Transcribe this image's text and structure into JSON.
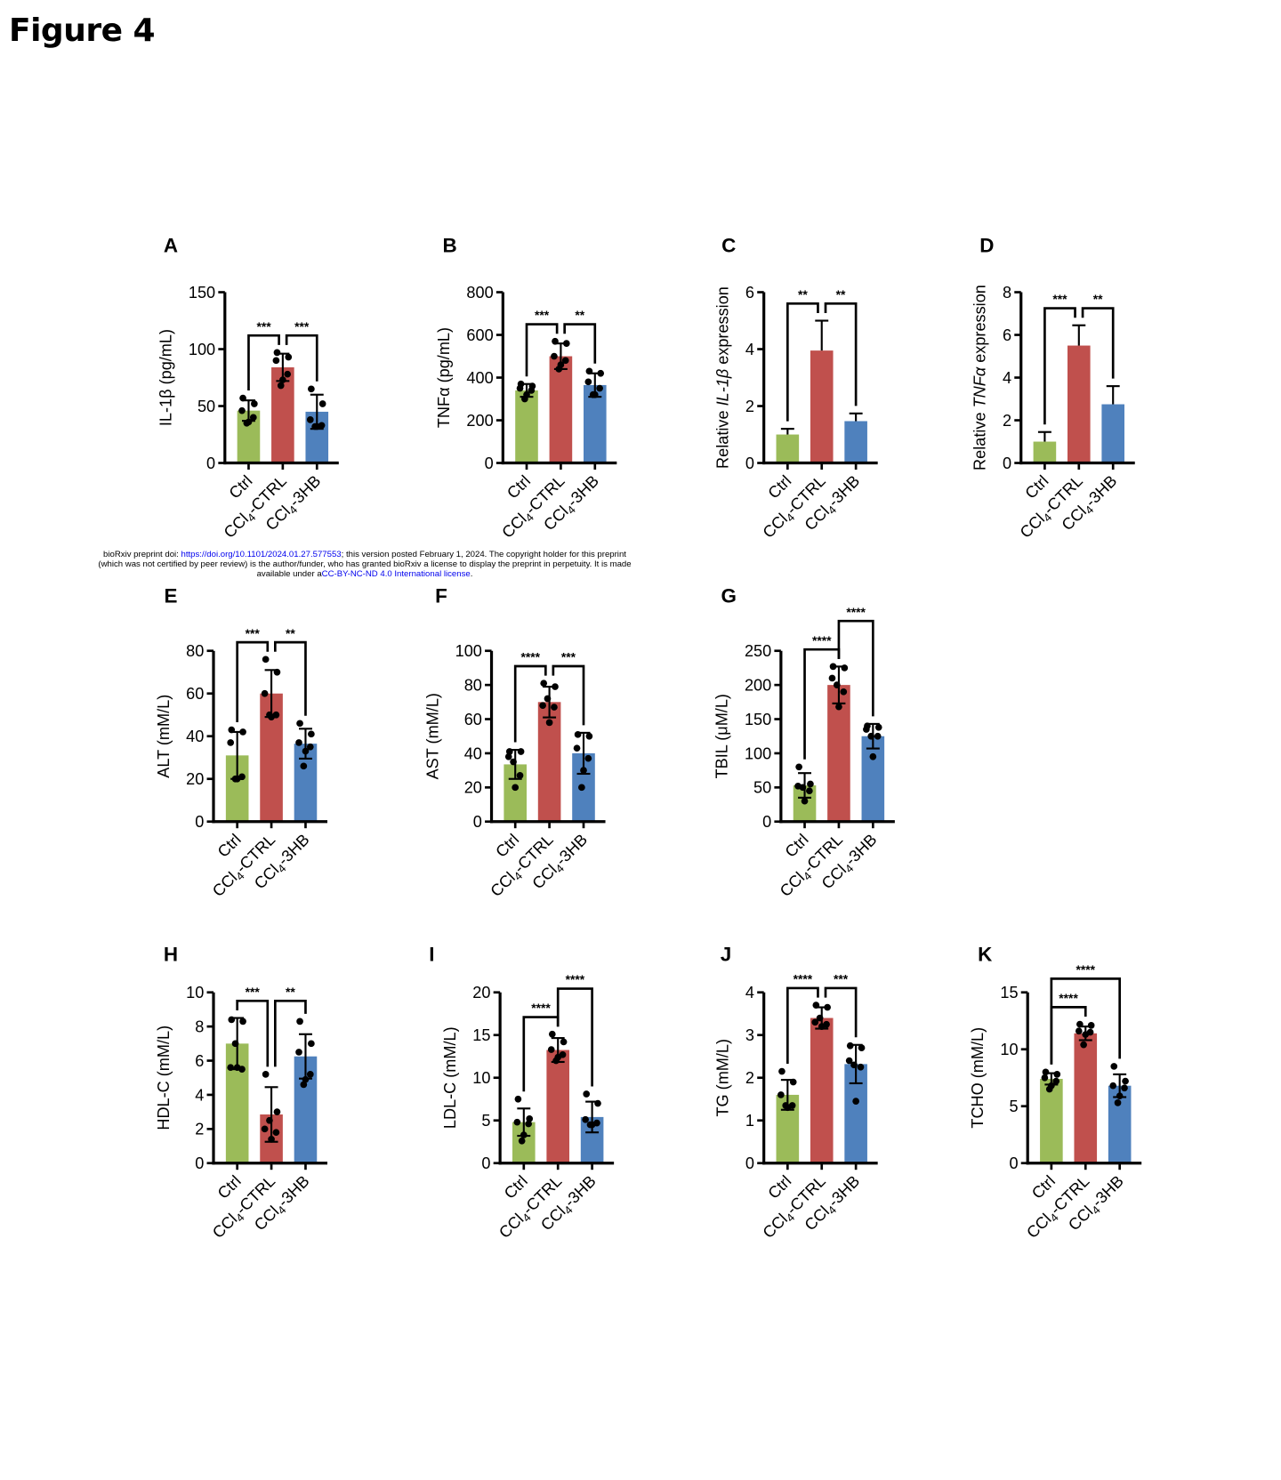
{
  "title": "Figure 4",
  "notice": {
    "line1_pre": "bioRxiv preprint doi: ",
    "doi_link": "https://doi.org/10.1101/2024.01.27.577553",
    "line1_post": "; this version posted February 1, 2024. The copyright holder for this preprint",
    "line2": "(which was not certified by peer review) is the author/funder, who has granted bioRxiv a license to display the preprint in perpetuity. It is made",
    "line3_pre": "available under a",
    "license_link": "CC-BY-NC-ND 4.0 International license",
    "line3_post": "."
  },
  "colors": {
    "Ctrl": "#9BBB59",
    "CCl4-CTRL": "#C0504D",
    "CCl4-3HB": "#4F81BD"
  },
  "chart_data": [
    {
      "panel": "A",
      "type": "bar",
      "ylabel": [
        {
          "t": "IL-1β (pg/mL)"
        }
      ],
      "ylim": [
        0,
        150
      ],
      "yticks": [
        "0",
        "50",
        "100",
        "150"
      ],
      "categories": [
        [
          {
            "t": "Ctrl"
          }
        ],
        [
          {
            "t": "CCl"
          },
          {
            "t": "4",
            "sub": true
          },
          {
            "t": "-CTRL"
          }
        ],
        [
          {
            "t": "CCl"
          },
          {
            "t": "4",
            "sub": true
          },
          {
            "t": "-3HB"
          }
        ]
      ],
      "error": "sd",
      "groups": [
        {
          "mean": 46,
          "sd": 9,
          "points": [
            57,
            52,
            46,
            40,
            36,
            35
          ]
        },
        {
          "mean": 84,
          "sd": 12,
          "points": [
            97,
            93,
            90,
            78,
            73,
            68
          ]
        },
        {
          "mean": 45,
          "sd": 15,
          "points": [
            65,
            52,
            38,
            33,
            32,
            32
          ]
        }
      ],
      "comparisons": [
        {
          "from": 0,
          "to": 1,
          "label": "***",
          "level": 1
        },
        {
          "from": 1,
          "to": 2,
          "label": "***",
          "level": 1
        }
      ]
    },
    {
      "panel": "B",
      "type": "bar",
      "ylabel": [
        {
          "t": "TNFα (pg/mL)"
        }
      ],
      "ylim": [
        0,
        800
      ],
      "yticks": [
        "0",
        "200",
        "400",
        "600",
        "800"
      ],
      "categories": [
        [
          {
            "t": "Ctrl"
          }
        ],
        [
          {
            "t": "CCl"
          },
          {
            "t": "4",
            "sub": true
          },
          {
            "t": "-CTRL"
          }
        ],
        [
          {
            "t": "CCl"
          },
          {
            "t": "4",
            "sub": true
          },
          {
            "t": "-3HB"
          }
        ]
      ],
      "error": "sd",
      "groups": [
        {
          "mean": 340,
          "sd": 30,
          "points": [
            370,
            360,
            350,
            340,
            320,
            300
          ]
        },
        {
          "mean": 500,
          "sd": 60,
          "points": [
            570,
            560,
            500,
            480,
            460,
            440
          ]
        },
        {
          "mean": 365,
          "sd": 55,
          "points": [
            430,
            420,
            380,
            350,
            320,
            320
          ]
        }
      ],
      "comparisons": [
        {
          "from": 0,
          "to": 1,
          "label": "***",
          "level": 1
        },
        {
          "from": 1,
          "to": 2,
          "label": "**",
          "level": 1
        }
      ]
    },
    {
      "panel": "C",
      "type": "bar",
      "ylabel": [
        {
          "t": "Relative "
        },
        {
          "t": "IL-1β",
          "italic": true
        },
        {
          "t": " expression"
        }
      ],
      "ylim": [
        0,
        6
      ],
      "yticks": [
        "0",
        "2",
        "4",
        "6"
      ],
      "categories": [
        [
          {
            "t": "Ctrl"
          }
        ],
        [
          {
            "t": "CCl"
          },
          {
            "t": "4",
            "sub": true
          },
          {
            "t": "-CTRL"
          }
        ],
        [
          {
            "t": "CCl"
          },
          {
            "t": "4",
            "sub": true
          },
          {
            "t": "-3HB"
          }
        ]
      ],
      "error": "sd-up",
      "groups": [
        {
          "mean": 1.0,
          "sd": 0.2,
          "points": []
        },
        {
          "mean": 3.95,
          "sd": 1.05,
          "points": []
        },
        {
          "mean": 1.47,
          "sd": 0.27,
          "points": []
        }
      ],
      "comparisons": [
        {
          "from": 0,
          "to": 1,
          "label": "**",
          "level": 1
        },
        {
          "from": 1,
          "to": 2,
          "label": "**",
          "level": 1
        }
      ]
    },
    {
      "panel": "D",
      "type": "bar",
      "ylabel": [
        {
          "t": "Relative "
        },
        {
          "t": "TNFα",
          "italic": true
        },
        {
          "t": " expression"
        }
      ],
      "ylim": [
        0,
        8
      ],
      "yticks": [
        "0",
        "2",
        "4",
        "6",
        "8"
      ],
      "categories": [
        [
          {
            "t": "Ctrl"
          }
        ],
        [
          {
            "t": "CCl"
          },
          {
            "t": "4",
            "sub": true
          },
          {
            "t": "-CTRL"
          }
        ],
        [
          {
            "t": "CCl"
          },
          {
            "t": "4",
            "sub": true
          },
          {
            "t": "-3HB"
          }
        ]
      ],
      "error": "sd-up",
      "groups": [
        {
          "mean": 1.0,
          "sd": 0.45,
          "points": []
        },
        {
          "mean": 5.5,
          "sd": 0.95,
          "points": []
        },
        {
          "mean": 2.75,
          "sd": 0.85,
          "points": []
        }
      ],
      "comparisons": [
        {
          "from": 0,
          "to": 1,
          "label": "***",
          "level": 1
        },
        {
          "from": 1,
          "to": 2,
          "label": "**",
          "level": 1
        }
      ]
    },
    {
      "panel": "E",
      "type": "bar",
      "ylabel": [
        {
          "t": "ALT (mM/L)"
        }
      ],
      "ylim": [
        0,
        80
      ],
      "yticks": [
        "0",
        "20",
        "40",
        "60",
        "80"
      ],
      "categories": [
        [
          {
            "t": "Ctrl"
          }
        ],
        [
          {
            "t": "CCl"
          },
          {
            "t": "4",
            "sub": true
          },
          {
            "t": "-CTRL"
          }
        ],
        [
          {
            "t": "CCl"
          },
          {
            "t": "4",
            "sub": true
          },
          {
            "t": "-3HB"
          }
        ]
      ],
      "error": "sd",
      "groups": [
        {
          "mean": 31,
          "sd": 11,
          "points": [
            43,
            42,
            37,
            21,
            20,
            20
          ]
        },
        {
          "mean": 60,
          "sd": 11,
          "points": [
            76,
            70,
            60,
            50,
            49,
            50
          ]
        },
        {
          "mean": 36.5,
          "sd": 7,
          "points": [
            46,
            41,
            37,
            35,
            33,
            26
          ]
        }
      ],
      "comparisons": [
        {
          "from": 0,
          "to": 1,
          "label": "***",
          "level": 1
        },
        {
          "from": 1,
          "to": 2,
          "label": "**",
          "level": 1
        }
      ]
    },
    {
      "panel": "F",
      "type": "bar",
      "ylabel": [
        {
          "t": "AST (mM/L)"
        }
      ],
      "ylim": [
        0,
        100
      ],
      "yticks": [
        "0",
        "20",
        "40",
        "60",
        "80",
        "100"
      ],
      "categories": [
        [
          {
            "t": "Ctrl"
          }
        ],
        [
          {
            "t": "CCl"
          },
          {
            "t": "4",
            "sub": true
          },
          {
            "t": "-CTRL"
          }
        ],
        [
          {
            "t": "CCl"
          },
          {
            "t": "4",
            "sub": true
          },
          {
            "t": "-3HB"
          }
        ]
      ],
      "error": "sd",
      "groups": [
        {
          "mean": 33.5,
          "sd": 8.5,
          "points": [
            41,
            41,
            38,
            27,
            20,
            35
          ]
        },
        {
          "mean": 70,
          "sd": 9,
          "points": [
            81,
            79,
            68,
            67,
            58,
            72
          ]
        },
        {
          "mean": 40,
          "sd": 12,
          "points": [
            51,
            50,
            43,
            37,
            30,
            20
          ]
        }
      ],
      "comparisons": [
        {
          "from": 0,
          "to": 1,
          "label": "****",
          "level": 1
        },
        {
          "from": 1,
          "to": 2,
          "label": "***",
          "level": 1
        }
      ]
    },
    {
      "panel": "G",
      "type": "bar",
      "ylabel": [
        {
          "t": "TBIL (μM/L)"
        }
      ],
      "ylim": [
        0,
        250
      ],
      "yticks": [
        "0",
        "50",
        "100",
        "150",
        "200",
        "250"
      ],
      "categories": [
        [
          {
            "t": "Ctrl"
          }
        ],
        [
          {
            "t": "CCl"
          },
          {
            "t": "4",
            "sub": true
          },
          {
            "t": "-CTRL"
          }
        ],
        [
          {
            "t": "CCl"
          },
          {
            "t": "4",
            "sub": true
          },
          {
            "t": "-3HB"
          }
        ]
      ],
      "error": "sd",
      "groups": [
        {
          "mean": 53,
          "sd": 18,
          "points": [
            80,
            55,
            52,
            45,
            30,
            50
          ]
        },
        {
          "mean": 200,
          "sd": 27,
          "points": [
            227,
            225,
            210,
            190,
            168,
            200
          ]
        },
        {
          "mean": 125,
          "sd": 18,
          "points": [
            140,
            138,
            135,
            125,
            95,
            125
          ]
        }
      ],
      "comparisons": [
        {
          "from": 0,
          "to": 1,
          "label": "****",
          "level": 1
        },
        {
          "from": 1,
          "to": 2,
          "label": "****",
          "level": 2
        }
      ]
    },
    {
      "panel": "H",
      "type": "bar",
      "ylabel": [
        {
          "t": "HDL-C (mM/L)"
        }
      ],
      "ylim": [
        0,
        10
      ],
      "yticks": [
        "0",
        "2",
        "4",
        "6",
        "8",
        "10"
      ],
      "categories": [
        [
          {
            "t": "Ctrl"
          }
        ],
        [
          {
            "t": "CCl"
          },
          {
            "t": "4",
            "sub": true
          },
          {
            "t": "-CTRL"
          }
        ],
        [
          {
            "t": "CCl"
          },
          {
            "t": "4",
            "sub": true
          },
          {
            "t": "-3HB"
          }
        ]
      ],
      "error": "sd",
      "groups": [
        {
          "mean": 7.0,
          "sd": 1.5,
          "points": [
            8.4,
            8.3,
            5.6,
            5.5,
            5.6,
            7.0
          ]
        },
        {
          "mean": 2.85,
          "sd": 1.6,
          "points": [
            5.2,
            3.0,
            2.0,
            1.8,
            1.4,
            2.5
          ]
        },
        {
          "mean": 6.25,
          "sd": 1.3,
          "points": [
            8.3,
            7.0,
            6.5,
            5.2,
            4.9,
            4.6
          ]
        }
      ],
      "comparisons": [
        {
          "from": 0,
          "to": 1,
          "label": "***",
          "level": 1
        },
        {
          "from": 1,
          "to": 2,
          "label": "**",
          "level": 1
        }
      ]
    },
    {
      "panel": "I",
      "type": "bar",
      "ylabel": [
        {
          "t": "LDL-C (mM/L)"
        }
      ],
      "ylim": [
        0,
        20
      ],
      "yticks": [
        "0",
        "5",
        "10",
        "15",
        "20"
      ],
      "categories": [
        [
          {
            "t": "Ctrl"
          }
        ],
        [
          {
            "t": "CCl"
          },
          {
            "t": "4",
            "sub": true
          },
          {
            "t": "-CTRL"
          }
        ],
        [
          {
            "t": "CCl"
          },
          {
            "t": "4",
            "sub": true
          },
          {
            "t": "-3HB"
          }
        ]
      ],
      "error": "sd",
      "groups": [
        {
          "mean": 4.8,
          "sd": 1.6,
          "points": [
            7.5,
            5.2,
            4.8,
            4.6,
            3.3,
            2.6
          ]
        },
        {
          "mean": 13.25,
          "sd": 1.4,
          "points": [
            15.1,
            14.2,
            13.3,
            12.7,
            12.4,
            12.0
          ]
        },
        {
          "mean": 5.4,
          "sd": 1.8,
          "points": [
            8.1,
            7.0,
            5.1,
            4.7,
            4.5,
            4.5
          ]
        }
      ],
      "comparisons": [
        {
          "from": 0,
          "to": 1,
          "label": "****",
          "level": 1
        },
        {
          "from": 1,
          "to": 2,
          "label": "****",
          "level": 2
        }
      ]
    },
    {
      "panel": "J",
      "type": "bar",
      "ylabel": [
        {
          "t": "TG (mM/L)"
        }
      ],
      "ylim": [
        0,
        4
      ],
      "yticks": [
        "0",
        "1",
        "2",
        "3",
        "4"
      ],
      "categories": [
        [
          {
            "t": "Ctrl"
          }
        ],
        [
          {
            "t": "CCl"
          },
          {
            "t": "4",
            "sub": true
          },
          {
            "t": "-CTRL"
          }
        ],
        [
          {
            "t": "CCl"
          },
          {
            "t": "4",
            "sub": true
          },
          {
            "t": "-3HB"
          }
        ]
      ],
      "error": "sd",
      "groups": [
        {
          "mean": 1.6,
          "sd": 0.35,
          "points": [
            2.15,
            1.9,
            1.6,
            1.35,
            1.3,
            1.35
          ]
        },
        {
          "mean": 3.4,
          "sd": 0.25,
          "points": [
            3.7,
            3.65,
            3.3,
            3.25,
            3.2,
            3.4
          ]
        },
        {
          "mean": 2.32,
          "sd": 0.45,
          "points": [
            2.75,
            2.7,
            2.4,
            2.25,
            1.45,
            2.3
          ]
        }
      ],
      "comparisons": [
        {
          "from": 0,
          "to": 1,
          "label": "****",
          "level": 1
        },
        {
          "from": 1,
          "to": 2,
          "label": "***",
          "level": 1
        }
      ]
    },
    {
      "panel": "K",
      "type": "bar",
      "ylabel": [
        {
          "t": "TCHO (mM/L)"
        }
      ],
      "ylim": [
        0,
        15
      ],
      "yticks": [
        "0",
        "5",
        "10",
        "15"
      ],
      "categories": [
        [
          {
            "t": "Ctrl"
          }
        ],
        [
          {
            "t": "CCl"
          },
          {
            "t": "4",
            "sub": true
          },
          {
            "t": "-CTRL"
          }
        ],
        [
          {
            "t": "CCl"
          },
          {
            "t": "4",
            "sub": true
          },
          {
            "t": "-3HB"
          }
        ]
      ],
      "error": "sd",
      "groups": [
        {
          "mean": 7.4,
          "sd": 0.5,
          "points": [
            8.0,
            7.8,
            7.5,
            7.2,
            6.8,
            6.5
          ]
        },
        {
          "mean": 11.4,
          "sd": 0.6,
          "points": [
            12.2,
            12.1,
            11.6,
            11.5,
            11.3,
            10.4
          ]
        },
        {
          "mean": 6.8,
          "sd": 1.0,
          "points": [
            8.5,
            7.2,
            6.8,
            6.6,
            5.9,
            5.3
          ]
        }
      ],
      "comparisons": [
        {
          "from": 0,
          "to": 1,
          "label": "****",
          "level": 1
        },
        {
          "from": 0,
          "to": 2,
          "label": "****",
          "level": 2
        }
      ]
    }
  ]
}
